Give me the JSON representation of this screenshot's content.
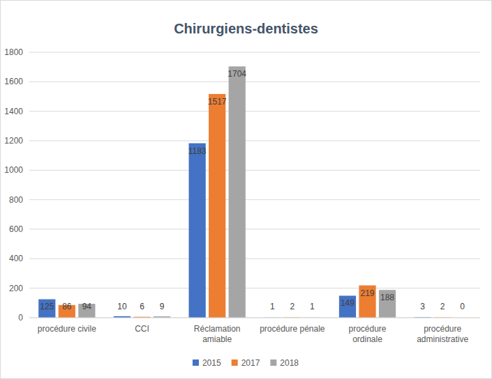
{
  "chart_data": {
    "type": "bar",
    "title": "Chirurgiens-dentistes",
    "categories": [
      "procédure civile",
      "CCI",
      "Réclamation amiable",
      "procédure pénale",
      "procédure ordinale",
      "procédure administrative"
    ],
    "series": [
      {
        "name": "2015",
        "color": "#4472c4",
        "values": [
          125,
          10,
          1183,
          1,
          149,
          3
        ]
      },
      {
        "name": "2017",
        "color": "#ed7d31",
        "values": [
          86,
          6,
          1517,
          2,
          219,
          2
        ]
      },
      {
        "name": "2018",
        "color": "#a5a5a5",
        "values": [
          94,
          9,
          1704,
          1,
          188,
          0
        ]
      }
    ],
    "ylim": [
      0,
      1800
    ],
    "yticks": [
      0,
      200,
      400,
      600,
      800,
      1000,
      1200,
      1400,
      1600,
      1800
    ],
    "grid": true,
    "legend": "bottom",
    "data_labels": true
  }
}
